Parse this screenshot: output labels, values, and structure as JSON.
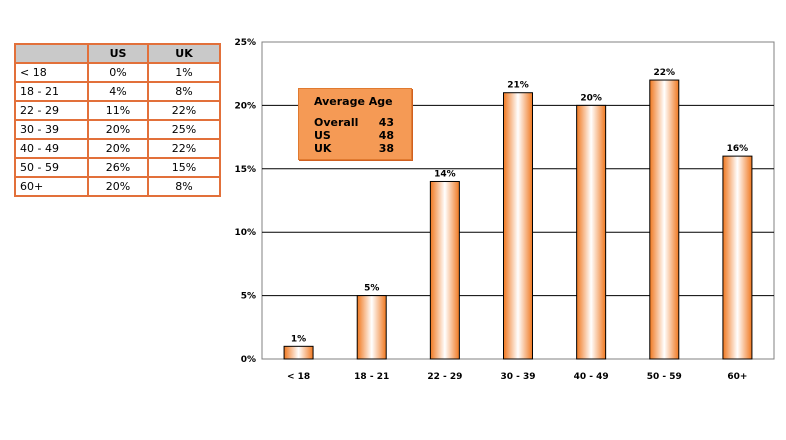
{
  "table": {
    "headers": [
      "",
      "US",
      "UK"
    ],
    "rows": [
      [
        "< 18",
        "0%",
        "1%"
      ],
      [
        "18 - 21",
        "4%",
        "8%"
      ],
      [
        "22 - 29",
        "11%",
        "22%"
      ],
      [
        "30 - 39",
        "20%",
        "25%"
      ],
      [
        "40 - 49",
        "20%",
        "22%"
      ],
      [
        "50 - 59",
        "26%",
        "15%"
      ],
      [
        "60+",
        "20%",
        "8%"
      ]
    ]
  },
  "average_age": {
    "title": "Average Age",
    "rows": [
      {
        "label": "Overall",
        "value": "43"
      },
      {
        "label": "US",
        "value": "48"
      },
      {
        "label": "UK",
        "value": "38"
      }
    ]
  },
  "colors": {
    "bar_edge": "#f07820",
    "bar_mid": "#ffffff",
    "table_border": "#e2703a",
    "header_bg": "#c9c9c9",
    "box_bg": "#f59a55"
  },
  "chart_data": {
    "type": "bar",
    "categories": [
      "< 18",
      "18 - 21",
      "22 - 29",
      "30 - 39",
      "40 - 49",
      "50 - 59",
      "60+"
    ],
    "values": [
      1,
      5,
      14,
      21,
      20,
      22,
      16
    ],
    "value_labels": [
      "1%",
      "5%",
      "14%",
      "21%",
      "20%",
      "22%",
      "16%"
    ],
    "y_ticks": [
      0,
      5,
      10,
      15,
      20,
      25
    ],
    "y_tick_labels": [
      "0%",
      "5%",
      "10%",
      "15%",
      "20%",
      "25%"
    ],
    "ylim": [
      0,
      25
    ],
    "grid": true
  }
}
